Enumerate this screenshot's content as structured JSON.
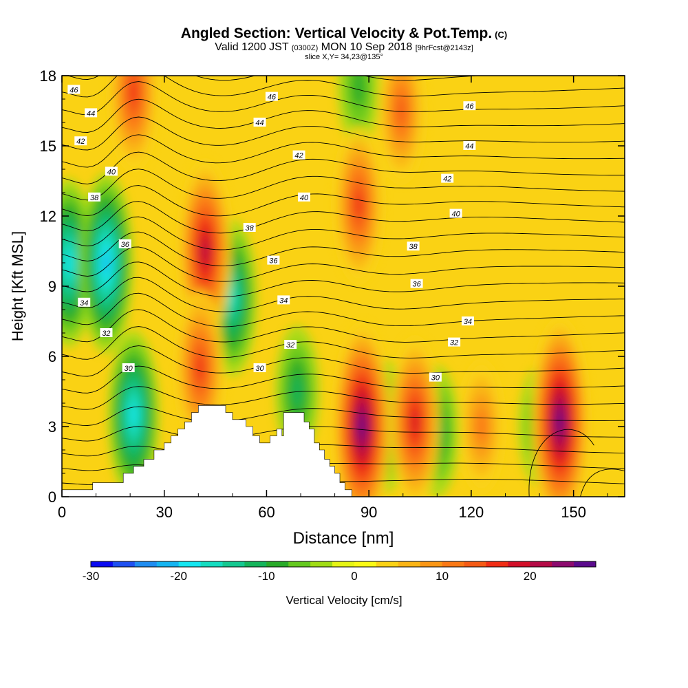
{
  "title": {
    "main": "Angled Section: Vertical Velocity & Pot.Temp.",
    "main_unit": "(C)",
    "valid_prefix": "Valid 1200 JST",
    "valid_utc": "(0300Z)",
    "valid_date": "MON 10 Sep 2018",
    "forecast": "[9hrFcst@2143z]",
    "slice": "slice X,Y= 34,23@135°"
  },
  "chart_data": {
    "type": "heatmap",
    "title": "Angled Section: Vertical Velocity & Pot.Temp. (C)",
    "xlabel": "Distance [nm]",
    "ylabel": "Height [Kft MSL]",
    "xlim": [
      0,
      165
    ],
    "ylim": [
      0,
      18
    ],
    "x_ticks": [
      0,
      30,
      60,
      90,
      120,
      150
    ],
    "y_ticks": [
      0,
      3,
      6,
      9,
      12,
      15,
      18
    ],
    "colorbar": {
      "label": "Vertical Velocity [cm/s]",
      "min": -30,
      "max": 27.5,
      "step": 2.5,
      "tick_values": [
        -30,
        -20,
        -10,
        0,
        10,
        20
      ],
      "colors": [
        "#0a0af0",
        "#1e50f0",
        "#1e8cf0",
        "#14b4f0",
        "#14e6f0",
        "#14dcc0",
        "#14c890",
        "#14b45a",
        "#28aa28",
        "#64c81e",
        "#a0dc14",
        "#e6f514",
        "#fafa14",
        "#fad214",
        "#fab414",
        "#fa9614",
        "#fa7814",
        "#f55a14",
        "#f02d14",
        "#d20f28",
        "#b40a46",
        "#8c0a6e",
        "#5a0a8c"
      ]
    },
    "updraft_cores": [
      {
        "x": 21,
        "z": 17.3,
        "w": 15
      },
      {
        "x": 42,
        "z": 10.5,
        "w": 20
      },
      {
        "x": 40.5,
        "z": 5.5,
        "w": 17
      },
      {
        "x": 87,
        "z": 12.5,
        "w": 15
      },
      {
        "x": 88,
        "z": 3,
        "w": 25
      },
      {
        "x": 103.5,
        "z": 3.2,
        "w": 19
      },
      {
        "x": 99.5,
        "z": 16.5,
        "w": 14
      },
      {
        "x": 123,
        "z": 3,
        "w": 12
      },
      {
        "x": 146,
        "z": 3.2,
        "w": 26
      }
    ],
    "downdraft_cores": [
      {
        "x": 2,
        "z": 10,
        "w": -19
      },
      {
        "x": 13,
        "z": 10,
        "w": -20
      },
      {
        "x": 21,
        "z": 3.5,
        "w": -18
      },
      {
        "x": 50,
        "z": 8.5,
        "w": -16
      },
      {
        "x": 69,
        "z": 4.5,
        "w": -12
      },
      {
        "x": 95,
        "z": 3,
        "w": -10
      },
      {
        "x": 110,
        "z": 2.8,
        "w": -12
      },
      {
        "x": 140,
        "z": 3,
        "w": -9
      },
      {
        "x": 87,
        "z": 17.5,
        "w": -8
      }
    ],
    "isentropes": {
      "label": "Pot.Temp. (C)",
      "labeled_values": [
        30,
        32,
        34,
        36,
        38,
        40,
        42,
        44,
        46
      ],
      "labels": [
        {
          "text": "46",
          "x": 3.5,
          "z": 17.4
        },
        {
          "text": "44",
          "x": 8.5,
          "z": 16.4
        },
        {
          "text": "42",
          "x": 5.5,
          "z": 15.2
        },
        {
          "text": "40",
          "x": 14.5,
          "z": 13.9
        },
        {
          "text": "38",
          "x": 9.5,
          "z": 12.8
        },
        {
          "text": "36",
          "x": 18.5,
          "z": 10.8
        },
        {
          "text": "34",
          "x": 6.5,
          "z": 8.3
        },
        {
          "text": "32",
          "x": 13,
          "z": 7
        },
        {
          "text": "30",
          "x": 19.5,
          "z": 5.5
        },
        {
          "text": "46",
          "x": 61.5,
          "z": 17.1
        },
        {
          "text": "44",
          "x": 58,
          "z": 16
        },
        {
          "text": "42",
          "x": 69.5,
          "z": 14.6
        },
        {
          "text": "40",
          "x": 71,
          "z": 12.8
        },
        {
          "text": "38",
          "x": 55,
          "z": 11.5
        },
        {
          "text": "36",
          "x": 62,
          "z": 10.1
        },
        {
          "text": "34",
          "x": 65,
          "z": 8.4
        },
        {
          "text": "32",
          "x": 67,
          "z": 6.5
        },
        {
          "text": "30",
          "x": 58,
          "z": 5.5
        },
        {
          "text": "46",
          "x": 119.5,
          "z": 16.7
        },
        {
          "text": "44",
          "x": 119.5,
          "z": 15
        },
        {
          "text": "42",
          "x": 113,
          "z": 13.6
        },
        {
          "text": "40",
          "x": 115.5,
          "z": 12.1
        },
        {
          "text": "38",
          "x": 103,
          "z": 10.7
        },
        {
          "text": "36",
          "x": 104,
          "z": 9.1
        },
        {
          "text": "34",
          "x": 119,
          "z": 7.5
        },
        {
          "text": "32",
          "x": 115,
          "z": 6.6
        },
        {
          "text": "30",
          "x": 109.5,
          "z": 5.1
        }
      ]
    },
    "terrain": [
      [
        0,
        0.3
      ],
      [
        9,
        0.3
      ],
      [
        9,
        0.6
      ],
      [
        18,
        0.6
      ],
      [
        18,
        1
      ],
      [
        21,
        1
      ],
      [
        21,
        1.3
      ],
      [
        24,
        1.3
      ],
      [
        24,
        1.6
      ],
      [
        27,
        1.6
      ],
      [
        27,
        2
      ],
      [
        30,
        2
      ],
      [
        30,
        2.3
      ],
      [
        32,
        2.3
      ],
      [
        32,
        2.6
      ],
      [
        34,
        2.6
      ],
      [
        34,
        2.9
      ],
      [
        36,
        2.9
      ],
      [
        36,
        3.2
      ],
      [
        38,
        3.2
      ],
      [
        38,
        3.6
      ],
      [
        40,
        3.6
      ],
      [
        40,
        3.9
      ],
      [
        48,
        3.9
      ],
      [
        48,
        3.6
      ],
      [
        50,
        3.6
      ],
      [
        50,
        3.3
      ],
      [
        54,
        3.3
      ],
      [
        54,
        3
      ],
      [
        56,
        3
      ],
      [
        56,
        2.6
      ],
      [
        58,
        2.6
      ],
      [
        58,
        2.3
      ],
      [
        61,
        2.3
      ],
      [
        61,
        2.6
      ],
      [
        63,
        2.6
      ],
      [
        63,
        2.9
      ],
      [
        64.5,
        2.9
      ],
      [
        64.5,
        2.6
      ],
      [
        65,
        2.6
      ],
      [
        65,
        3.6
      ],
      [
        71,
        3.6
      ],
      [
        71,
        3.2
      ],
      [
        72.5,
        3.2
      ],
      [
        72.5,
        2.9
      ],
      [
        74,
        2.9
      ],
      [
        74,
        2.3
      ],
      [
        75.5,
        2.3
      ],
      [
        75.5,
        2
      ],
      [
        77,
        2
      ],
      [
        77,
        1.6
      ],
      [
        78.5,
        1.6
      ],
      [
        78.5,
        1.3
      ],
      [
        80,
        1.3
      ],
      [
        80,
        1
      ],
      [
        81.5,
        1
      ],
      [
        81.5,
        0.6
      ],
      [
        83,
        0.6
      ],
      [
        83,
        0.3
      ],
      [
        85,
        0.3
      ],
      [
        85,
        0
      ]
    ]
  },
  "colorbar_ticks": [
    "-30",
    "-20",
    "-10",
    "0",
    "10",
    "20"
  ],
  "x_tick_labels": [
    "0",
    "30",
    "60",
    "90",
    "120",
    "150"
  ],
  "y_tick_labels": [
    "0",
    "3",
    "6",
    "9",
    "12",
    "15",
    "18"
  ]
}
